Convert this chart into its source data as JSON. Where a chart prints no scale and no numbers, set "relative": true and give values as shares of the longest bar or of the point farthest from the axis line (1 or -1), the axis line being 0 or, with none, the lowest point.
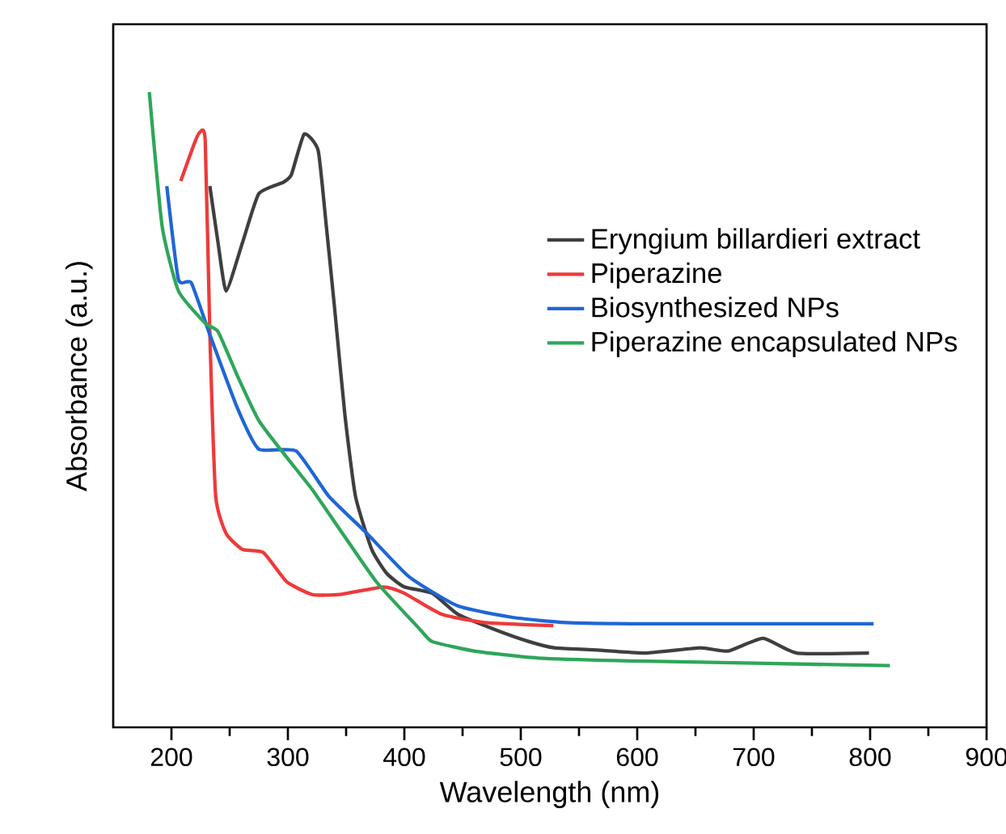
{
  "chart_data": {
    "type": "line",
    "xlabel": "Wavelength (nm)",
    "ylabel": "Absorbance (a.u.)",
    "relative": true,
    "xlim": [
      150,
      900
    ],
    "xticks": [
      200,
      300,
      400,
      500,
      600,
      700,
      800,
      900
    ],
    "tick_labels": "x",
    "legend": "right",
    "grid": false,
    "marker": "none",
    "line_style": "solid",
    "series": [
      {
        "name": "Eryngium billardieri extract",
        "color": "#3f3f3f",
        "x": [
          233,
          240,
          247,
          261,
          275,
          296,
          303,
          314,
          326,
          333,
          340,
          349,
          358,
          372,
          385,
          400,
          424,
          446,
          479,
          507,
          529,
          562,
          608,
          654,
          678,
          708,
          737,
          799
        ],
        "values": [
          0.852,
          0.763,
          0.687,
          0.763,
          0.84,
          0.858,
          0.87,
          0.934,
          0.908,
          0.789,
          0.662,
          0.491,
          0.364,
          0.28,
          0.242,
          0.221,
          0.211,
          0.178,
          0.153,
          0.135,
          0.125,
          0.122,
          0.117,
          0.125,
          0.12,
          0.14,
          0.117,
          0.117
        ]
      },
      {
        "name": "Piperazine",
        "color": "#ee3a3a",
        "x": [
          208,
          219,
          224,
          229,
          233,
          238,
          247,
          261,
          279,
          299,
          321,
          344,
          382,
          400,
          432,
          469,
          528
        ],
        "values": [
          0.86,
          0.916,
          0.936,
          0.924,
          0.618,
          0.364,
          0.305,
          0.28,
          0.275,
          0.229,
          0.209,
          0.209,
          0.221,
          0.211,
          0.178,
          0.165,
          0.16
        ]
      },
      {
        "name": "Biosynthesized NPs",
        "color": "#1f66d6",
        "x": [
          196,
          206,
          217,
          233,
          257,
          275,
          307,
          335,
          368,
          404,
          446,
          493,
          539,
          608,
          803
        ],
        "values": [
          0.852,
          0.705,
          0.7,
          0.618,
          0.501,
          0.438,
          0.435,
          0.364,
          0.305,
          0.237,
          0.191,
          0.173,
          0.165,
          0.163,
          0.163
        ]
      },
      {
        "name": "Piperazine encapsulated NPs",
        "color": "#2ea65a",
        "x": [
          181,
          192,
          206,
          229,
          240,
          257,
          275,
          299,
          321,
          344,
          376,
          414,
          424,
          460,
          515,
          608,
          817
        ],
        "values": [
          1.0,
          0.789,
          0.687,
          0.636,
          0.623,
          0.552,
          0.483,
          0.425,
          0.374,
          0.313,
          0.229,
          0.153,
          0.135,
          0.12,
          0.109,
          0.104,
          0.097
        ]
      }
    ]
  }
}
